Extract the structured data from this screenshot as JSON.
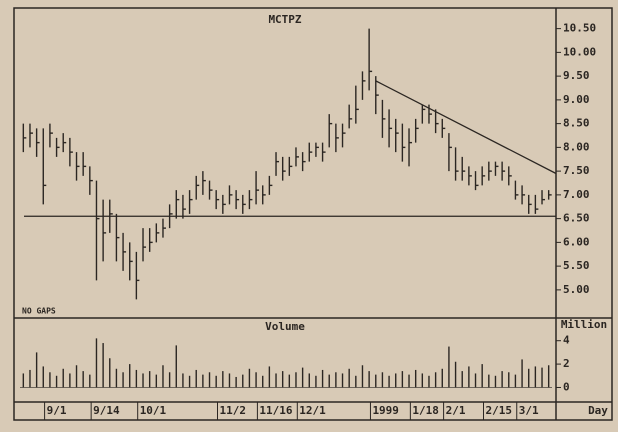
{
  "chart_data": [
    {
      "type": "ohlc",
      "title": "MCTPZ",
      "annotation": "NO GAPS",
      "color": "#2b2622",
      "high": [
        8.5,
        8.5,
        8.4,
        8.4,
        8.5,
        8.2,
        8.3,
        8.2,
        7.9,
        7.9,
        7.6,
        7.3,
        6.9,
        6.9,
        6.6,
        6.2,
        6.0,
        5.8,
        6.3,
        6.3,
        6.4,
        6.5,
        6.8,
        7.1,
        7.0,
        7.1,
        7.4,
        7.5,
        7.3,
        7.1,
        7.0,
        7.2,
        7.1,
        7.0,
        7.1,
        7.5,
        7.2,
        7.4,
        7.9,
        7.8,
        7.8,
        8.0,
        7.9,
        8.1,
        8.1,
        8.1,
        8.7,
        8.5,
        8.5,
        8.9,
        9.3,
        9.6,
        10.5,
        9.5,
        9.0,
        8.8,
        8.6,
        8.5,
        8.4,
        8.6,
        8.9,
        8.9,
        8.8,
        8.6,
        8.3,
        8.0,
        7.8,
        7.6,
        7.5,
        7.6,
        7.7,
        7.7,
        7.7,
        7.6,
        7.3,
        7.2,
        7.0,
        7.0,
        7.1,
        7.1
      ],
      "low": [
        7.9,
        8.0,
        7.8,
        6.8,
        8.0,
        7.8,
        7.9,
        7.6,
        7.3,
        7.4,
        7.0,
        5.2,
        5.6,
        6.2,
        5.6,
        5.4,
        5.2,
        4.8,
        5.6,
        5.8,
        6.0,
        6.1,
        6.3,
        6.5,
        6.5,
        6.6,
        6.9,
        7.0,
        6.9,
        6.7,
        6.6,
        6.8,
        6.7,
        6.6,
        6.7,
        6.8,
        6.8,
        7.0,
        7.4,
        7.3,
        7.4,
        7.6,
        7.5,
        7.7,
        7.8,
        7.7,
        8.0,
        7.9,
        8.0,
        8.4,
        8.5,
        9.0,
        9.2,
        8.7,
        8.2,
        8.0,
        7.9,
        7.7,
        7.6,
        8.1,
        8.5,
        8.5,
        8.3,
        8.2,
        7.5,
        7.3,
        7.3,
        7.2,
        7.1,
        7.2,
        7.3,
        7.4,
        7.3,
        7.2,
        6.9,
        6.8,
        6.6,
        6.6,
        6.8,
        6.9
      ],
      "close": [
        8.2,
        8.3,
        8.1,
        7.2,
        8.3,
        8.0,
        8.1,
        7.9,
        7.6,
        7.6,
        7.3,
        6.5,
        6.2,
        6.6,
        6.1,
        5.8,
        5.6,
        5.2,
        5.9,
        6.0,
        6.2,
        6.3,
        6.6,
        6.9,
        6.7,
        6.9,
        7.2,
        7.3,
        7.1,
        6.9,
        6.8,
        7.0,
        6.9,
        6.8,
        6.9,
        7.1,
        7.0,
        7.2,
        7.7,
        7.5,
        7.6,
        7.8,
        7.7,
        7.9,
        8.0,
        7.9,
        8.5,
        8.2,
        8.3,
        8.6,
        8.8,
        9.4,
        9.6,
        9.1,
        8.6,
        8.4,
        8.3,
        8.0,
        8.1,
        8.4,
        8.8,
        8.7,
        8.5,
        8.4,
        8.0,
        7.5,
        7.5,
        7.4,
        7.2,
        7.4,
        7.5,
        7.6,
        7.5,
        7.4,
        7.0,
        7.0,
        6.8,
        6.7,
        6.9,
        7.0
      ],
      "support": 6.55,
      "trendline": [
        9.4,
        7.45
      ],
      "ylim": [
        4.45,
        10.85
      ],
      "yticks": [
        {
          "value": 5,
          "label": "5.00"
        },
        {
          "value": 5.5,
          "label": "5.50"
        },
        {
          "value": 6,
          "label": "6.00"
        },
        {
          "value": 6.5,
          "label": "6.50"
        },
        {
          "value": 7,
          "label": "7.00"
        },
        {
          "value": 7.5,
          "label": "7.50"
        },
        {
          "value": 8,
          "label": "8.00"
        },
        {
          "value": 8.5,
          "label": "8.50"
        },
        {
          "value": 9,
          "label": "9.00"
        },
        {
          "value": 9.5,
          "label": "9.50"
        },
        {
          "value": 10,
          "label": "10.00"
        },
        {
          "value": 10.5,
          "label": "10.50"
        }
      ]
    },
    {
      "type": "bar",
      "title": "Volume",
      "y_label": "Million",
      "x_label": "Day",
      "color": "#2b2622",
      "categories": [
        null,
        null,
        null,
        null,
        "9/1",
        null,
        null,
        null,
        null,
        null,
        null,
        "9/14",
        null,
        null,
        null,
        null,
        null,
        null,
        "10/1",
        null,
        null,
        null,
        null,
        null,
        null,
        null,
        null,
        null,
        null,
        null,
        "11/2",
        null,
        null,
        null,
        null,
        null,
        "11/16",
        null,
        null,
        null,
        null,
        null,
        "12/1",
        null,
        null,
        null,
        null,
        null,
        null,
        null,
        null,
        null,
        null,
        "1999",
        null,
        null,
        null,
        null,
        null,
        "1/18",
        null,
        null,
        null,
        null,
        "2/1",
        null,
        null,
        null,
        null,
        null,
        "2/15",
        null,
        null,
        null,
        null,
        "3/1",
        null,
        null,
        null,
        null
      ],
      "values": [
        1.2,
        1.5,
        3.0,
        1.8,
        1.3,
        1.0,
        1.6,
        1.2,
        1.9,
        1.4,
        1.1,
        4.2,
        3.8,
        2.5,
        1.6,
        1.3,
        2.0,
        1.5,
        1.2,
        1.4,
        1.1,
        1.9,
        1.3,
        3.6,
        1.2,
        1.0,
        1.5,
        1.1,
        1.3,
        1.0,
        1.4,
        1.2,
        0.9,
        1.1,
        1.6,
        1.3,
        1.0,
        1.8,
        1.2,
        1.4,
        1.1,
        1.3,
        1.7,
        1.2,
        1.0,
        1.5,
        1.1,
        1.3,
        1.2,
        1.6,
        1.0,
        1.9,
        1.4,
        1.1,
        1.3,
        1.0,
        1.2,
        1.4,
        1.1,
        1.5,
        1.2,
        1.0,
        1.3,
        1.6,
        3.5,
        2.2,
        1.4,
        1.8,
        1.2,
        2.0,
        1.1,
        1.0,
        1.4,
        1.3,
        1.1,
        2.4,
        1.6,
        1.8,
        1.7,
        1.9
      ],
      "ylim": [
        -0.9,
        5.6
      ],
      "yticks": [
        0,
        2,
        4
      ]
    }
  ]
}
